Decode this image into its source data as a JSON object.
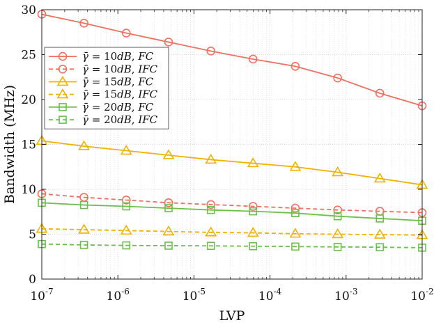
{
  "chart_data": {
    "type": "line",
    "title": "",
    "xlabel": "LVP",
    "ylabel": "Bandwidth (MHz)",
    "xscale": "log",
    "xlim": [
      1e-07,
      0.01
    ],
    "ylim": [
      0,
      30
    ],
    "grid": true,
    "legend_position": "top-left",
    "x_tick_labels": [
      {
        "base": "10",
        "exp": "-7"
      },
      {
        "base": "10",
        "exp": "-6"
      },
      {
        "base": "10",
        "exp": "-5"
      },
      {
        "base": "10",
        "exp": "-4"
      },
      {
        "base": "10",
        "exp": "-3"
      },
      {
        "base": "10",
        "exp": "-2"
      }
    ],
    "y_ticks": [
      "0",
      "5",
      "10",
      "15",
      "20",
      "25",
      "30"
    ],
    "x": [
      1e-07,
      3.59e-07,
      1.29e-06,
      4.64e-06,
      1.67e-05,
      5.99e-05,
      0.000215,
      0.000774,
      0.00278,
      0.01
    ],
    "series": [
      {
        "name": "γ̄ = 10dB, FC",
        "legend": {
          "snr": "10",
          "mode": "FC"
        },
        "color": "#f07060",
        "marker": "circle",
        "dash": "solid",
        "values": [
          29.5,
          28.5,
          27.4,
          26.4,
          25.4,
          24.5,
          23.7,
          22.4,
          20.7,
          19.3
        ]
      },
      {
        "name": "γ̄ = 10dB, IFC",
        "legend": {
          "snr": "10",
          "mode": "IFC"
        },
        "color": "#f07060",
        "marker": "circle",
        "dash": "dashed",
        "values": [
          9.5,
          9.1,
          8.8,
          8.5,
          8.3,
          8.1,
          7.9,
          7.7,
          7.55,
          7.4
        ]
      },
      {
        "name": "γ̄ = 15dB, FC",
        "legend": {
          "snr": "15",
          "mode": "FC"
        },
        "color": "#f2b100",
        "marker": "triangle",
        "dash": "solid",
        "values": [
          15.4,
          14.8,
          14.3,
          13.8,
          13.3,
          12.9,
          12.5,
          11.9,
          11.2,
          10.5
        ]
      },
      {
        "name": "γ̄ = 15dB, IFC",
        "legend": {
          "snr": "15",
          "mode": "IFC"
        },
        "color": "#f2b100",
        "marker": "triangle",
        "dash": "dashed",
        "values": [
          5.6,
          5.5,
          5.4,
          5.3,
          5.2,
          5.15,
          5.05,
          5.0,
          4.95,
          4.9
        ]
      },
      {
        "name": "γ̄ = 20dB, FC",
        "legend": {
          "snr": "20",
          "mode": "FC"
        },
        "color": "#6cbf4a",
        "marker": "square",
        "dash": "solid",
        "values": [
          8.5,
          8.25,
          8.1,
          7.9,
          7.7,
          7.55,
          7.35,
          7.0,
          6.75,
          6.5
        ]
      },
      {
        "name": "γ̄ = 20dB, IFC",
        "legend": {
          "snr": "20",
          "mode": "IFC"
        },
        "color": "#6cbf4a",
        "marker": "square",
        "dash": "dashed",
        "values": [
          3.9,
          3.8,
          3.75,
          3.72,
          3.7,
          3.66,
          3.62,
          3.58,
          3.55,
          3.5
        ]
      }
    ]
  }
}
